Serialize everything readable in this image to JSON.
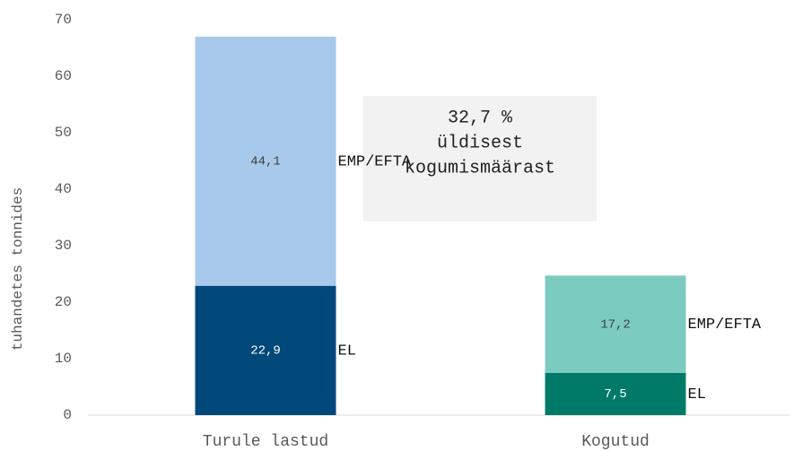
{
  "chart_data": {
    "type": "stacked_bar",
    "y_label": "tuhandetes tonnides",
    "categories": [
      "Turule lastud",
      "Kogutud"
    ],
    "series": [
      {
        "name": "EL",
        "colors": [
          "#00487a",
          "#007a68"
        ],
        "values": [
          22.9,
          7.5
        ],
        "value_labels": [
          "22,9",
          "7,5"
        ],
        "label_colors": [
          "#ffffff",
          "#ffffff"
        ]
      },
      {
        "name": "EMP/EFTA",
        "colors": [
          "#a7c9ec",
          "#7ccbbf"
        ],
        "values": [
          44.1,
          17.2
        ],
        "value_labels": [
          "44,1",
          "17,2"
        ],
        "label_colors": [
          "#404040",
          "#404040"
        ]
      }
    ],
    "annotation": [
      "32,7 %",
      "üldisest",
      "kogumismäärast"
    ],
    "ylim": [
      0,
      70
    ],
    "yticks": [
      0,
      10,
      20,
      30,
      40,
      50,
      60,
      70
    ],
    "grid": false
  }
}
